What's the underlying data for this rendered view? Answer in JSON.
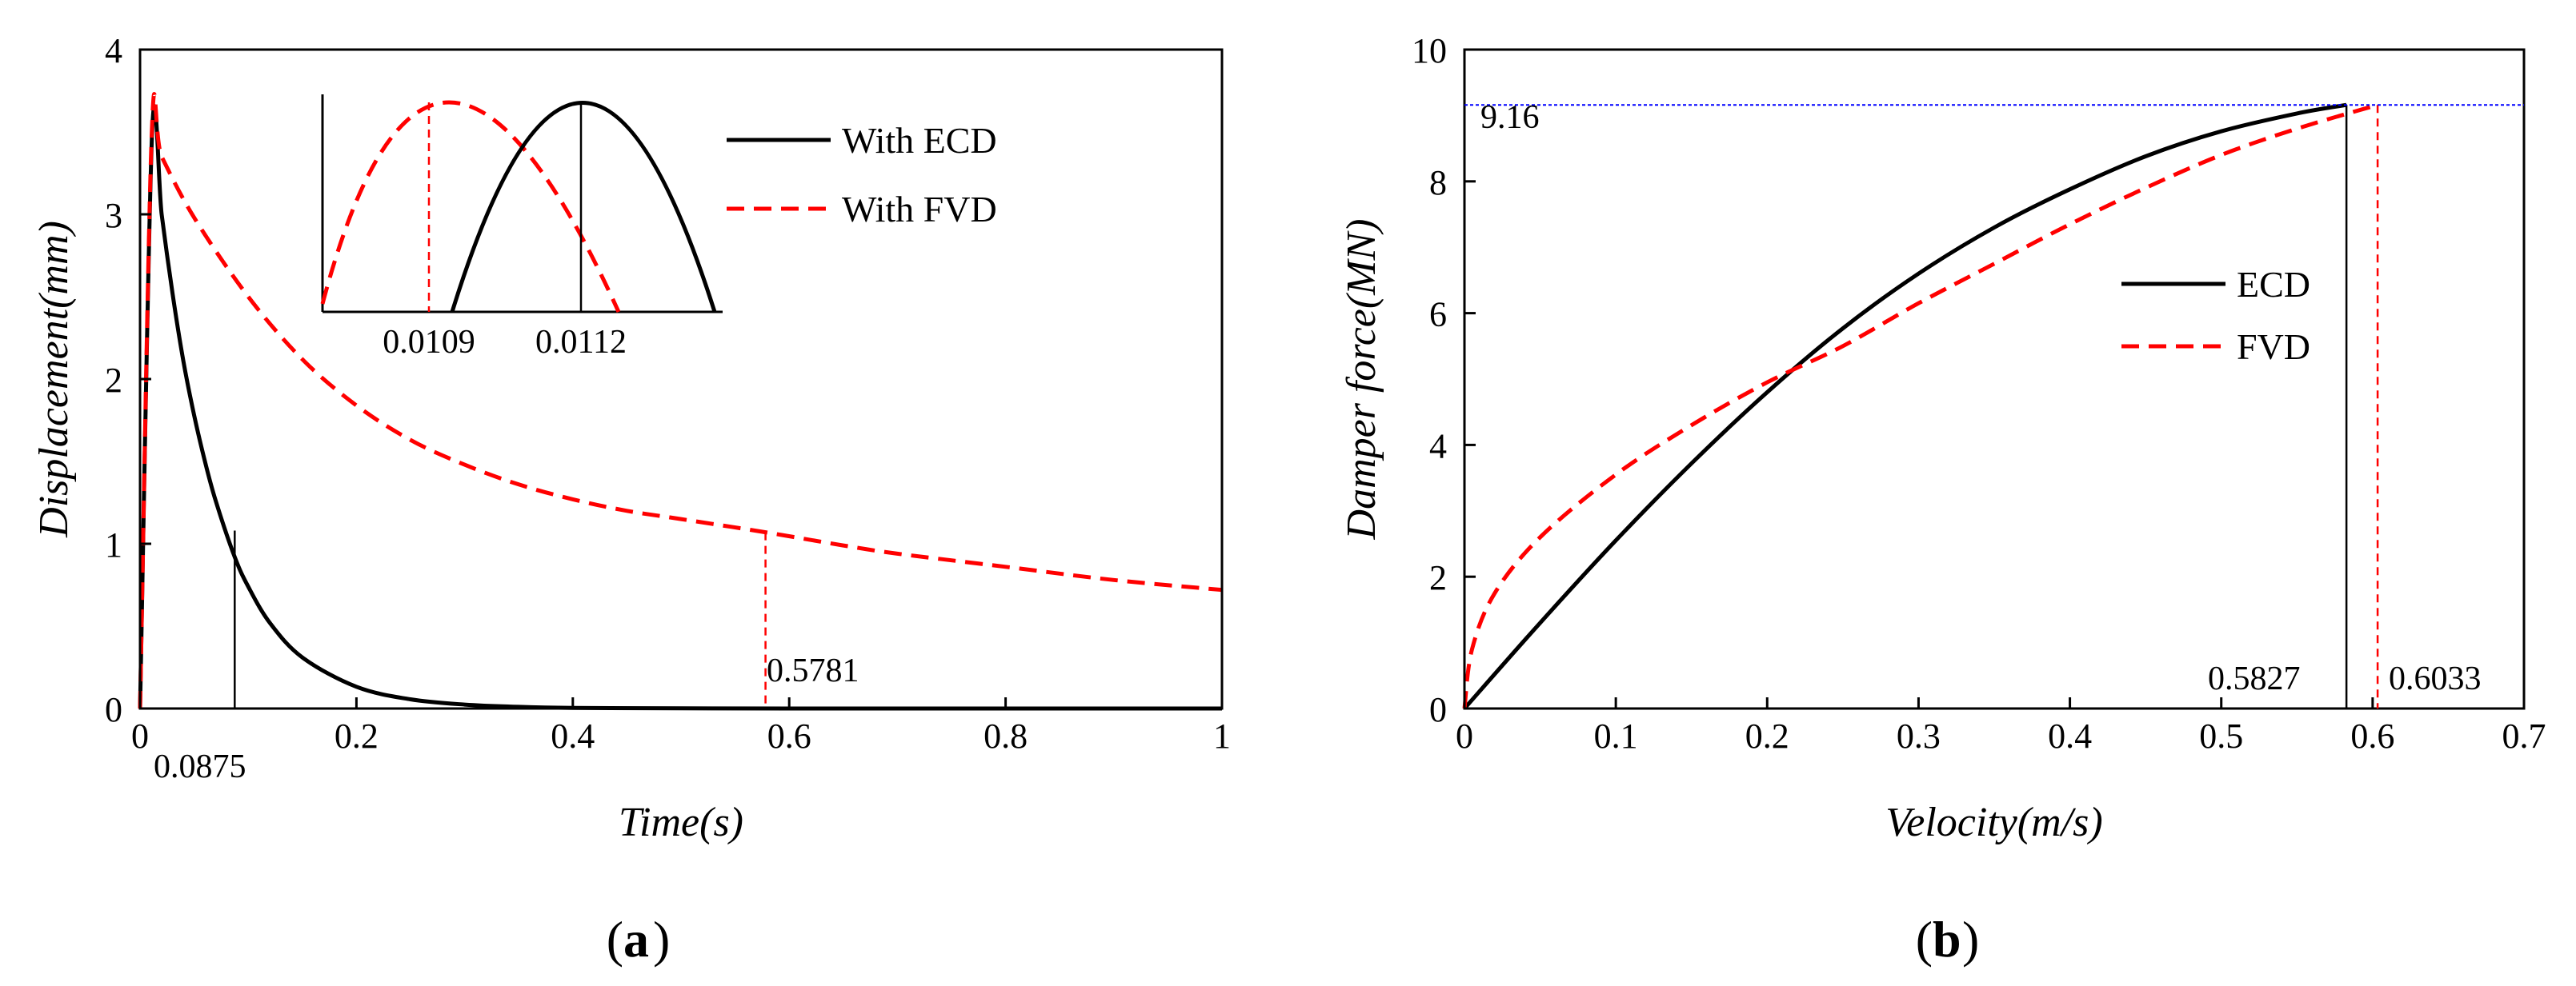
{
  "colors": {
    "ecd": "#000000",
    "fvd": "#ff0000",
    "ref": "#0000ff"
  },
  "chart_data": [
    {
      "panel": "(a)",
      "panel_letter": "a",
      "type": "line",
      "xlabel": "Time(s)",
      "ylabel": "Displacement(mm)",
      "xlim": [
        0,
        1
      ],
      "ylim": [
        0,
        4
      ],
      "xticks": [
        0,
        0.2,
        0.4,
        0.6,
        0.8,
        1
      ],
      "xtick_labels": [
        "0",
        "0.2",
        "0.4",
        "0.6",
        "0.8",
        "1"
      ],
      "yticks": [
        0,
        1,
        2,
        3,
        4
      ],
      "ytick_labels": [
        "0",
        "1",
        "2",
        "3",
        "4"
      ],
      "legend": "top-right",
      "series": [
        {
          "name": "With ECD",
          "style": "solid",
          "x": [
            0,
            0.0112,
            0.02,
            0.03,
            0.04,
            0.05,
            0.06,
            0.07,
            0.0875,
            0.1,
            0.12,
            0.15,
            0.2,
            0.25,
            0.3,
            0.35,
            0.4,
            0.5,
            0.6,
            0.8,
            1.0
          ],
          "y": [
            0,
            3.5,
            3.0,
            2.52,
            2.11,
            1.78,
            1.5,
            1.26,
            0.92,
            0.74,
            0.52,
            0.31,
            0.132,
            0.056,
            0.024,
            0.01,
            0.004,
            0.001,
            0.0002,
            0,
            0
          ]
        },
        {
          "name": "With FVD",
          "style": "dashed",
          "x": [
            0,
            0.0109,
            0.02,
            0.05,
            0.1,
            0.15,
            0.2,
            0.25,
            0.3,
            0.35,
            0.4,
            0.45,
            0.5,
            0.5781,
            0.65,
            0.7,
            0.8,
            0.9,
            1.0
          ],
          "y": [
            0,
            3.5,
            3.35,
            2.98,
            2.5,
            2.12,
            1.84,
            1.63,
            1.48,
            1.36,
            1.27,
            1.2,
            1.15,
            1.07,
            0.99,
            0.94,
            0.86,
            0.78,
            0.72
          ]
        }
      ],
      "annotations": [
        {
          "text": "0.0875",
          "x": 0.0875,
          "y": 1.08,
          "series": "With ECD"
        },
        {
          "text": "0.5781",
          "x": 0.5781,
          "y": 1.07,
          "series": "With FVD"
        }
      ],
      "inset": {
        "labels": [
          "0.0109",
          "0.0112"
        ],
        "peaks": [
          {
            "series": "With FVD",
            "x": 0.0109
          },
          {
            "series": "With ECD",
            "x": 0.0112
          }
        ]
      }
    },
    {
      "panel": "(b)",
      "panel_letter": "b",
      "type": "line",
      "xlabel": "Velocity(m/s)",
      "ylabel": "Damper force(MN)",
      "xlim": [
        0,
        0.7
      ],
      "ylim": [
        0,
        10
      ],
      "xticks": [
        0,
        0.1,
        0.2,
        0.3,
        0.4,
        0.5,
        0.6,
        0.7
      ],
      "xtick_labels": [
        "0",
        "0.1",
        "0.2",
        "0.3",
        "0.4",
        "0.5",
        "0.6",
        "0.7"
      ],
      "yticks": [
        0,
        2,
        4,
        6,
        8,
        10
      ],
      "ytick_labels": [
        "0",
        "2",
        "4",
        "6",
        "8",
        "10"
      ],
      "legend": "right",
      "series": [
        {
          "name": "ECD",
          "style": "solid",
          "x": [
            0,
            0.05,
            0.1,
            0.15,
            0.2,
            0.25,
            0.3,
            0.35,
            0.4,
            0.45,
            0.5,
            0.55,
            0.5827
          ],
          "y": [
            0,
            1.3,
            2.55,
            3.72,
            4.8,
            5.77,
            6.6,
            7.3,
            7.88,
            8.38,
            8.76,
            9.03,
            9.16
          ]
        },
        {
          "name": "FVD",
          "style": "dashed",
          "x": [
            0,
            0.005,
            0.02,
            0.05,
            0.1,
            0.15,
            0.2,
            0.25,
            0.3,
            0.35,
            0.4,
            0.45,
            0.5,
            0.55,
            0.6033
          ],
          "y": [
            0,
            0.9,
            1.75,
            2.6,
            3.55,
            4.3,
            4.95,
            5.5,
            6.15,
            6.75,
            7.35,
            7.9,
            8.4,
            8.8,
            9.16
          ]
        }
      ],
      "reference_line": {
        "y": 9.16,
        "label": "9.16"
      },
      "annotations": [
        {
          "text": "0.5827",
          "x": 0.5827,
          "series": "ECD"
        },
        {
          "text": "0.6033",
          "x": 0.6033,
          "series": "FVD"
        }
      ]
    }
  ]
}
